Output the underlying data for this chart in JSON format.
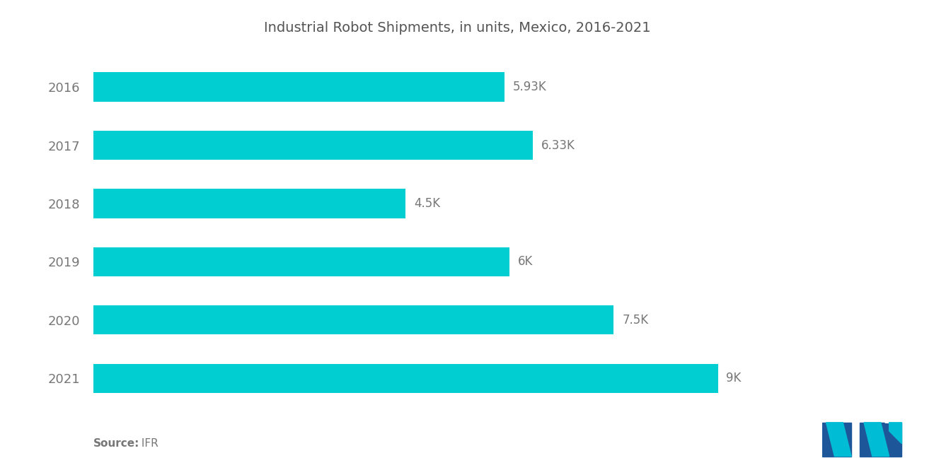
{
  "title": "Industrial Robot Shipments, in units, Mexico, 2016-2021",
  "years": [
    "2016",
    "2017",
    "2018",
    "2019",
    "2020",
    "2021"
  ],
  "values": [
    5930,
    6330,
    4500,
    6000,
    7500,
    9000
  ],
  "labels": [
    "5.93K",
    "6.33K",
    "4.5K",
    "6K",
    "7.5K",
    "9K"
  ],
  "bar_color": "#00CED1",
  "background_color": "#ffffff",
  "title_color": "#555555",
  "label_color": "#777777",
  "year_label_color": "#777777",
  "source_bold": "Source:",
  "source_normal": " IFR",
  "title_fontsize": 14,
  "label_fontsize": 12,
  "year_fontsize": 13,
  "source_fontsize": 11,
  "xlim": [
    0,
    10500
  ],
  "bar_height": 0.5,
  "logo_dark": "#1e5799",
  "logo_teal": "#00bcd4"
}
